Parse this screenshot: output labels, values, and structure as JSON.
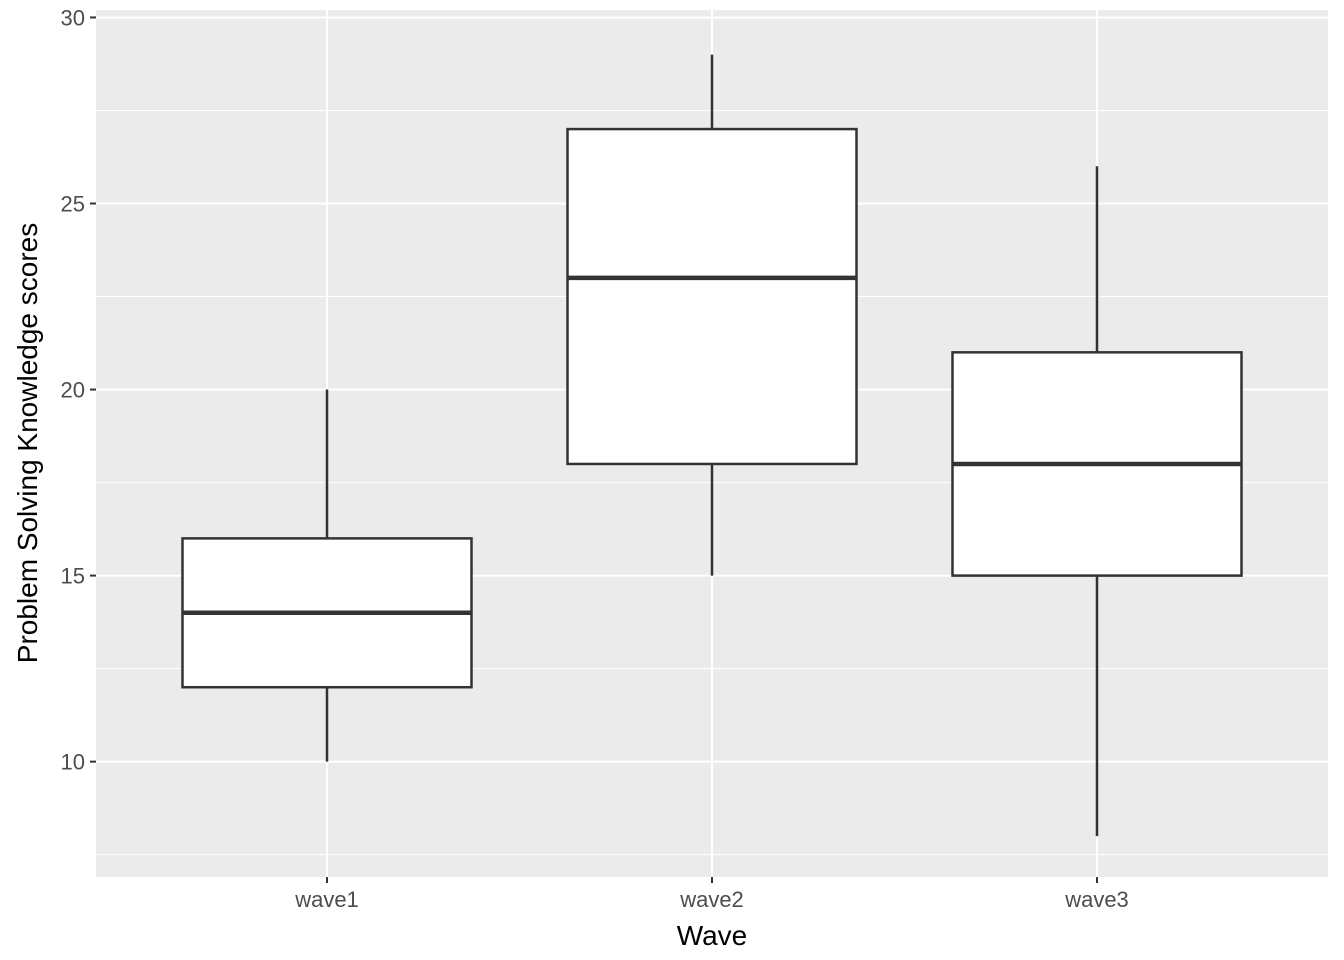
{
  "chart_data": {
    "type": "boxplot",
    "title": "",
    "xlabel": "Wave",
    "ylabel": "Problem Solving Knowledge scores",
    "categories": [
      "wave1",
      "wave2",
      "wave3"
    ],
    "series": [
      {
        "name": "wave1",
        "min": 10,
        "q1": 12,
        "median": 14,
        "q3": 16,
        "max": 20
      },
      {
        "name": "wave2",
        "min": 15,
        "q1": 18,
        "median": 23,
        "q3": 27,
        "max": 29
      },
      {
        "name": "wave3",
        "min": 8,
        "q1": 15,
        "median": 18,
        "q3": 21,
        "max": 26
      }
    ],
    "y_ticks": [
      "10",
      "15",
      "20",
      "25",
      "30"
    ],
    "y_tick_values": [
      10,
      15,
      20,
      25,
      30
    ],
    "y_minor_values": [
      7.5,
      12.5,
      17.5,
      22.5,
      27.5
    ],
    "ylim": [
      6.9,
      30.2
    ],
    "grid": "major-and-minor",
    "legend": "none",
    "colors": {
      "panel_background": "#EBEBEB",
      "grid_line": "#FFFFFF",
      "box_fill": "#FFFFFF",
      "box_stroke": "#333333",
      "tick_mark": "#333333",
      "tick_label": "#4D4D4D",
      "axis_title": "#000000",
      "outer_background": "#FFFFFF"
    }
  }
}
